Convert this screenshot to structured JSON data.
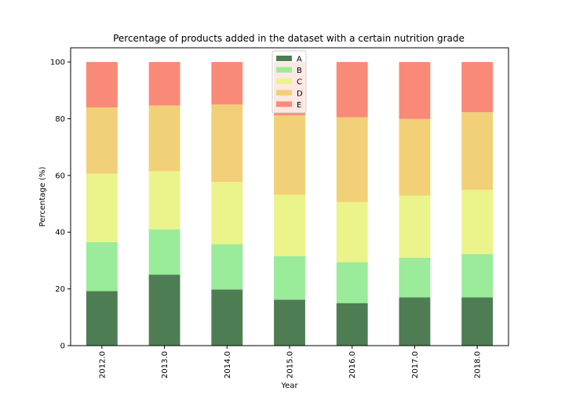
{
  "chart_data": {
    "type": "bar",
    "stacked": true,
    "title": "Percentage of products added in the dataset with a certain nutrition grade",
    "xlabel": "Year",
    "ylabel": "Percentage (%)",
    "ylim": [
      0,
      105
    ],
    "yticks": [
      0,
      20,
      40,
      60,
      80,
      100
    ],
    "grid": false,
    "legend_position": "top-center",
    "categories": [
      "2012.0",
      "2013.0",
      "2014.0",
      "2015.0",
      "2016.0",
      "2017.0",
      "2018.0"
    ],
    "series": [
      {
        "name": "A",
        "color": "#4f7d53",
        "values": [
          19.2,
          25.0,
          19.8,
          16.2,
          15.0,
          17.0,
          17.0
        ]
      },
      {
        "name": "B",
        "color": "#9aeb9a",
        "values": [
          17.3,
          16.0,
          16.0,
          15.4,
          14.4,
          14.0,
          15.3
        ]
      },
      {
        "name": "C",
        "color": "#ebf38b",
        "values": [
          24.1,
          20.5,
          21.9,
          21.6,
          21.2,
          21.9,
          22.6
        ]
      },
      {
        "name": "D",
        "color": "#f2d077",
        "values": [
          23.4,
          23.2,
          27.3,
          28.0,
          29.9,
          27.0,
          27.4
        ]
      },
      {
        "name": "E",
        "color": "#f98a78",
        "values": [
          16.0,
          15.3,
          15.0,
          18.8,
          19.5,
          20.1,
          17.7
        ]
      }
    ]
  }
}
